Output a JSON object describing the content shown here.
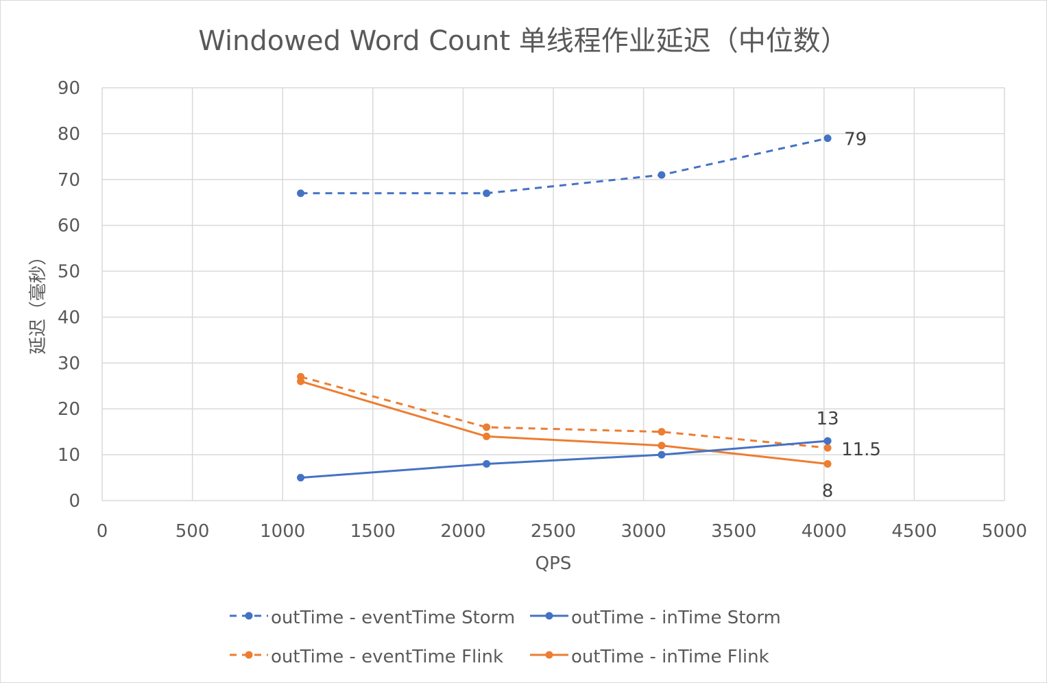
{
  "chart_data": {
    "type": "scatter",
    "title": "Windowed Word Count 单线程作业延迟（中位数）",
    "xlabel": "QPS",
    "ylabel": "延迟（毫秒）",
    "xlim": [
      0,
      5000
    ],
    "ylim": [
      0,
      90
    ],
    "x_ticks": [
      "0",
      "500",
      "1000",
      "1500",
      "2000",
      "2500",
      "3000",
      "3500",
      "4000",
      "4500",
      "5000"
    ],
    "y_ticks": [
      "0",
      "10",
      "20",
      "30",
      "40",
      "50",
      "60",
      "70",
      "80",
      "90"
    ],
    "grid": true,
    "legend_position": "bottom",
    "series": [
      {
        "name": "outTime - eventTime Storm",
        "color": "#4472c4",
        "dash": "dashed",
        "x": [
          1100,
          2130,
          3100,
          4020
        ],
        "y": [
          67,
          67,
          71,
          79
        ],
        "labels": [
          "",
          "",
          "",
          "79"
        ]
      },
      {
        "name": "outTime - inTime Storm",
        "color": "#4472c4",
        "dash": "solid",
        "x": [
          1100,
          2130,
          3100,
          4020
        ],
        "y": [
          5,
          8,
          10,
          13
        ],
        "labels": [
          "",
          "",
          "",
          "13"
        ]
      },
      {
        "name": "outTime - eventTime Flink",
        "color": "#ed7d31",
        "dash": "dashed",
        "x": [
          1100,
          2130,
          3100,
          4020
        ],
        "y": [
          27,
          16,
          15,
          11.5
        ],
        "labels": [
          "",
          "",
          "",
          "11.5"
        ]
      },
      {
        "name": "outTime - inTime Flink",
        "color": "#ed7d31",
        "dash": "solid",
        "x": [
          1100,
          2130,
          3100,
          4020
        ],
        "y": [
          26,
          14,
          12,
          8
        ],
        "labels": [
          "",
          "",
          "",
          "8"
        ]
      }
    ]
  }
}
